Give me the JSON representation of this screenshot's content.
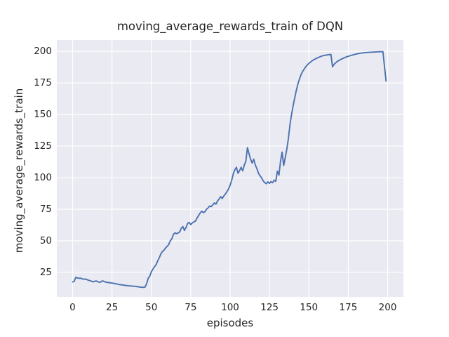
{
  "chart_data": {
    "type": "line",
    "title": "moving_average_rewards_train of DQN",
    "xlabel": "episodes",
    "ylabel": "moving_average_rewards_train",
    "x_ticks": [
      0,
      25,
      50,
      75,
      100,
      125,
      150,
      175,
      200
    ],
    "y_ticks": [
      25,
      50,
      75,
      100,
      125,
      150,
      175,
      200
    ],
    "xlim": [
      -10,
      210
    ],
    "ylim": [
      5.5,
      209
    ],
    "grid": true,
    "legend": false,
    "colors": {
      "line": "#4C72B0",
      "plot_background": "#EAEAF2",
      "grid": "#FFFFFF",
      "text": "#262626",
      "figure_background": "#FFFFFF"
    },
    "series": [
      {
        "name": "moving_average_rewards_train",
        "x": [
          0,
          1,
          2,
          3,
          4,
          5,
          6,
          7,
          8,
          9,
          10,
          12,
          13,
          14,
          15,
          16,
          17,
          18,
          19,
          20,
          21,
          22,
          23,
          25,
          27,
          29,
          31,
          33,
          35,
          37,
          39,
          41,
          43,
          45,
          46,
          47,
          48,
          49,
          50,
          51,
          52,
          53,
          54,
          55,
          56,
          57,
          58,
          59,
          60,
          61,
          62,
          63,
          64,
          65,
          66,
          67,
          68,
          69,
          70,
          71,
          72,
          73,
          74,
          75,
          76,
          77,
          78,
          79,
          80,
          81,
          82,
          83,
          84,
          85,
          86,
          87,
          88,
          89,
          90,
          91,
          92,
          93,
          94,
          95,
          96,
          97,
          98,
          99,
          100,
          101,
          102,
          103,
          104,
          105,
          106,
          107,
          108,
          109,
          110,
          111,
          112,
          113,
          114,
          115,
          116,
          117,
          118,
          119,
          120,
          121,
          122,
          123,
          124,
          125,
          126,
          127,
          128,
          129,
          130,
          131,
          132,
          133,
          134,
          135,
          136,
          137,
          138,
          139,
          140,
          141,
          142,
          143,
          144,
          145,
          146,
          147,
          148,
          149,
          150,
          152,
          154,
          156,
          158,
          160,
          162,
          164,
          165,
          166,
          168,
          170,
          172,
          174,
          176,
          178,
          180,
          183,
          186,
          189,
          192,
          195,
          197,
          198,
          199
        ],
        "y": [
          17.4,
          17.8,
          21.0,
          20.6,
          20.3,
          20.4,
          20.0,
          19.5,
          19.7,
          19.3,
          18.8,
          18.0,
          17.5,
          17.9,
          18.2,
          17.6,
          17.1,
          17.5,
          18.3,
          17.8,
          17.3,
          17.1,
          16.9,
          16.5,
          16.1,
          15.5,
          15.1,
          14.8,
          14.4,
          14.2,
          14.0,
          13.7,
          13.3,
          13.1,
          13.4,
          16.0,
          20.3,
          22.0,
          25.5,
          27.5,
          29.5,
          31.0,
          34.0,
          36.5,
          39.5,
          41.5,
          42.5,
          44.3,
          45.5,
          47.0,
          50.0,
          51.5,
          55.0,
          56.3,
          55.6,
          56.2,
          57.0,
          60.0,
          61.3,
          58.2,
          60.5,
          63.7,
          64.6,
          62.8,
          64.2,
          65.0,
          65.6,
          68.0,
          70.0,
          72.0,
          73.5,
          72.3,
          73.0,
          75.0,
          76.0,
          77.5,
          77.0,
          78.5,
          80.0,
          79.0,
          81.5,
          83.0,
          85.0,
          83.5,
          85.5,
          87.0,
          89.0,
          91.0,
          94.0,
          97.9,
          103.0,
          106.3,
          108.2,
          103.5,
          105.5,
          108.2,
          105.4,
          110.0,
          113.0,
          123.8,
          119.0,
          114.6,
          111.5,
          114.6,
          110.0,
          107.2,
          103.5,
          101.5,
          99.8,
          97.5,
          96.0,
          95.2,
          96.7,
          95.5,
          96.9,
          96.0,
          98.0,
          97.1,
          105.2,
          102.0,
          113.0,
          120.2,
          109.6,
          116.0,
          122.6,
          131.0,
          142.0,
          150.0,
          157.0,
          163.0,
          169.0,
          174.0,
          178.0,
          181.5,
          184.0,
          186.0,
          187.8,
          189.3,
          190.5,
          192.5,
          194.0,
          195.2,
          196.2,
          196.9,
          197.3,
          197.6,
          187.8,
          189.8,
          192.0,
          193.5,
          194.7,
          195.7,
          196.5,
          197.2,
          197.9,
          198.6,
          199.0,
          199.3,
          199.5,
          199.7,
          199.8,
          188.0,
          176.5
        ]
      }
    ]
  }
}
